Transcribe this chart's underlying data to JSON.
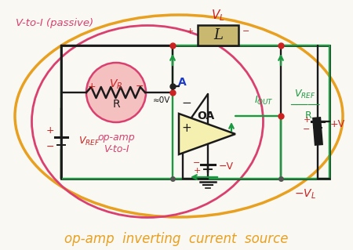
{
  "bg_color": "#faf8f2",
  "title": "op-amp  inverting  current  source",
  "title_color": "#e8a020",
  "title_fontsize": 12,
  "passive_label": "V-to-I (passive)",
  "opamp_label1": "op-amp",
  "opamp_label2": "V-to-I",
  "passive_color": "#d94070",
  "opamp_label_color": "#d94070",
  "wire_color": "#1a1a1a",
  "green_wire": "#1a9940",
  "red_color": "#cc2222",
  "outer_ellipse_color": "#e8a020",
  "passive_ellipse_color": "#d94070",
  "vr_circle_fill": "#f5c0c0",
  "vr_circle_edge": "#d94070",
  "opamp_fill": "#f5f0b0",
  "inductor_fill": "#c8b870",
  "label_green": "#1a9940",
  "label_blue": "#1a3acc",
  "label_black": "#1a1a1a",
  "label_red": "#cc2222"
}
